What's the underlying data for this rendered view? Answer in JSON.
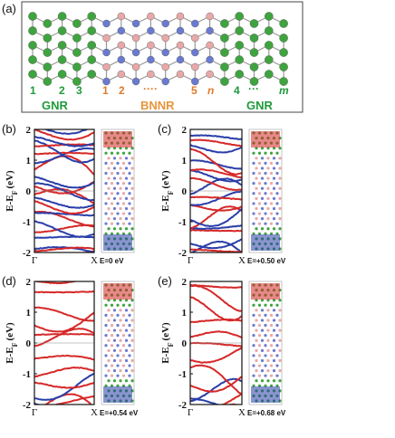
{
  "panel_a": {
    "label": "(a)",
    "segments": {
      "left": "GNR",
      "middle": "BNNR",
      "right": "GNR"
    },
    "indices": {
      "i1": "1",
      "i2": "2",
      "i3": "3",
      "b1": "1",
      "b2": "2",
      "bdots": "····",
      "b5": "5",
      "bn": "n",
      "g4": "4",
      "gdots": "···",
      "gm": "m"
    }
  },
  "axes_text": {
    "ylabel": "E-E",
    "ylabel_sub": "F",
    "ylabel_unit": "(eV)",
    "x_start": "Γ",
    "x_end": "X"
  },
  "colors": {
    "spin_up": "#d62828",
    "spin_down": "#2a3ea8",
    "carbon": "#3fa33f",
    "boron": "#e8a8a8",
    "nitrogen": "#6a7ad0"
  },
  "chart_data": [
    {
      "panel": "(b)",
      "type": "line",
      "field_label": "E=0 eV",
      "xlabel": "",
      "ylabel": "E-E_F (eV)",
      "ylim": [
        -2,
        2
      ],
      "yticks": [
        "2",
        "1",
        "0",
        "-1",
        "-2"
      ],
      "xticks": [
        "Γ",
        "X"
      ]
    },
    {
      "panel": "(c)",
      "type": "line",
      "field_label": "E=+0.50 eV",
      "xlabel": "",
      "ylabel": "E-E_F (eV)",
      "ylim": [
        -2,
        2
      ],
      "yticks": [
        "2",
        "1",
        "0",
        "-1",
        "-2"
      ],
      "xticks": [
        "Γ",
        "X"
      ]
    },
    {
      "panel": "(d)",
      "type": "line",
      "field_label": "E=+0.54 eV",
      "xlabel": "",
      "ylabel": "E-E_F (eV)",
      "ylim": [
        -2,
        2
      ],
      "yticks": [
        "2",
        "1",
        "0",
        "-1",
        "-2"
      ],
      "xticks": [
        "Γ",
        "X"
      ]
    },
    {
      "panel": "(e)",
      "type": "line",
      "field_label": "E=+0.68 eV",
      "xlabel": "",
      "ylabel": "E-E_F (eV)",
      "ylim": [
        -2,
        2
      ],
      "yticks": [
        "2",
        "1",
        "0",
        "-1",
        "-2"
      ],
      "xticks": [
        "Γ",
        "X"
      ]
    }
  ]
}
